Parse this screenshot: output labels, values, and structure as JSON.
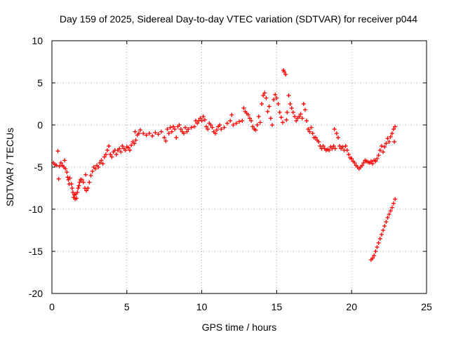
{
  "chart_data": {
    "type": "scatter",
    "title": "Day 159 of 2025, Sidereal Day-to-day VTEC variation (SDTVAR) for receiver p044",
    "xlabel": "GPS time / hours",
    "ylabel": "SDTVAR / TECUs",
    "xlim": [
      0,
      25
    ],
    "ylim": [
      -20,
      10
    ],
    "xticks": [
      0,
      5,
      10,
      15,
      20,
      25
    ],
    "yticks": [
      -20,
      -15,
      -10,
      -5,
      0,
      5,
      10
    ],
    "grid": true,
    "marker": "plus",
    "color": "#ff0000",
    "series": [
      {
        "name": "main",
        "points": [
          [
            0.1,
            -4.5
          ],
          [
            0.2,
            -4.7
          ],
          [
            0.3,
            -4.8
          ],
          [
            0.4,
            -3.1
          ],
          [
            0.45,
            -6.4
          ],
          [
            0.5,
            -4.9
          ],
          [
            0.6,
            -4.5
          ],
          [
            0.7,
            -4.8
          ],
          [
            0.8,
            -5.0
          ],
          [
            0.85,
            -4.2
          ],
          [
            0.9,
            -5.2
          ],
          [
            1.0,
            -5.6
          ],
          [
            1.05,
            -6.2
          ],
          [
            1.1,
            -6.5
          ],
          [
            1.15,
            -7.0
          ],
          [
            1.2,
            -6.3
          ],
          [
            1.3,
            -7.0
          ],
          [
            1.35,
            -7.5
          ],
          [
            1.4,
            -8.0
          ],
          [
            1.45,
            -8.6
          ],
          [
            1.5,
            -8.3
          ],
          [
            1.55,
            -8.8
          ],
          [
            1.6,
            -8.2
          ],
          [
            1.65,
            -8.7
          ],
          [
            1.7,
            -8.0
          ],
          [
            1.75,
            -7.5
          ],
          [
            1.8,
            -7.2
          ],
          [
            1.85,
            -6.8
          ],
          [
            1.9,
            -6.5
          ],
          [
            2.0,
            -6.5
          ],
          [
            2.1,
            -6.8
          ],
          [
            2.2,
            -7.5
          ],
          [
            2.25,
            -5.9
          ],
          [
            2.3,
            -7.8
          ],
          [
            2.4,
            -7.5
          ],
          [
            2.5,
            -6.8
          ],
          [
            2.6,
            -6.0
          ],
          [
            2.7,
            -5.5
          ],
          [
            2.8,
            -5.0
          ],
          [
            2.9,
            -5.2
          ],
          [
            3.0,
            -4.8
          ],
          [
            3.1,
            -5.0
          ],
          [
            3.2,
            -4.5
          ],
          [
            3.3,
            -4.2
          ],
          [
            3.4,
            -4.6
          ],
          [
            3.5,
            -3.8
          ],
          [
            3.6,
            -3.5
          ],
          [
            3.7,
            -3.0
          ],
          [
            3.8,
            -2.5
          ],
          [
            3.9,
            -3.5
          ],
          [
            4.0,
            -3.8
          ],
          [
            4.1,
            -3.2
          ],
          [
            4.2,
            -3.0
          ],
          [
            4.3,
            -3.5
          ],
          [
            4.4,
            -3.0
          ],
          [
            4.5,
            -2.8
          ],
          [
            4.6,
            -3.2
          ],
          [
            4.7,
            -2.5
          ],
          [
            4.8,
            -2.8
          ],
          [
            4.9,
            -3.0
          ],
          [
            5.0,
            -2.6
          ],
          [
            5.1,
            -2.7
          ],
          [
            5.2,
            -3.0
          ],
          [
            5.3,
            -2.4
          ],
          [
            5.4,
            -2.0
          ],
          [
            5.5,
            -2.2
          ],
          [
            5.55,
            -0.8
          ],
          [
            5.6,
            -1.8
          ],
          [
            5.7,
            -1.2
          ],
          [
            5.8,
            -1.0
          ],
          [
            5.9,
            -0.6
          ],
          [
            6.1,
            -1.0
          ],
          [
            6.3,
            -1.2
          ],
          [
            6.5,
            -1.0
          ],
          [
            6.7,
            -1.3
          ],
          [
            6.9,
            -0.9
          ],
          [
            7.1,
            -1.1
          ],
          [
            7.3,
            -0.8
          ],
          [
            7.5,
            -1.5
          ],
          [
            7.6,
            -1.9
          ],
          [
            7.7,
            -0.5
          ],
          [
            7.8,
            -1.0
          ],
          [
            7.9,
            -0.3
          ],
          [
            8.0,
            -0.8
          ],
          [
            8.1,
            -0.2
          ],
          [
            8.2,
            -0.5
          ],
          [
            8.3,
            -1.5
          ],
          [
            8.4,
            -0.2
          ],
          [
            8.5,
            0.0
          ],
          [
            8.6,
            -0.5
          ],
          [
            8.7,
            -0.8
          ],
          [
            8.8,
            -1.0
          ],
          [
            8.9,
            -0.3
          ],
          [
            9.0,
            -0.8
          ],
          [
            9.1,
            -0.5
          ],
          [
            9.3,
            -0.3
          ],
          [
            9.5,
            -0.2
          ],
          [
            9.6,
            0.5
          ],
          [
            9.7,
            0.2
          ],
          [
            9.8,
            0.5
          ],
          [
            9.9,
            0.8
          ],
          [
            10.0,
            0.5
          ],
          [
            10.1,
            1.0
          ],
          [
            10.2,
            0.6
          ],
          [
            10.3,
            -0.2
          ],
          [
            10.4,
            -0.5
          ],
          [
            10.5,
            0.2
          ],
          [
            10.6,
            0.0
          ],
          [
            10.7,
            -0.3
          ],
          [
            10.8,
            -0.8
          ],
          [
            10.9,
            -1.0
          ],
          [
            11.0,
            -0.6
          ],
          [
            11.1,
            -0.2
          ],
          [
            11.2,
            0.0
          ],
          [
            11.3,
            -0.5
          ],
          [
            11.5,
            -0.3
          ],
          [
            11.7,
            0.2
          ],
          [
            11.9,
            0.5
          ],
          [
            12.0,
            1.2
          ],
          [
            12.1,
            0.0
          ],
          [
            12.3,
            0.2
          ],
          [
            12.5,
            0.4
          ],
          [
            12.7,
            0.5
          ],
          [
            12.8,
            2.0
          ],
          [
            12.9,
            1.6
          ],
          [
            13.0,
            1.4
          ],
          [
            13.1,
            1.2
          ],
          [
            13.2,
            0.8
          ],
          [
            13.3,
            0.5
          ],
          [
            13.4,
            -0.2
          ],
          [
            13.5,
            -0.5
          ],
          [
            13.6,
            -0.6
          ],
          [
            13.7,
            0.0
          ],
          [
            13.8,
            1.0
          ],
          [
            13.9,
            0.3
          ],
          [
            14.0,
            2.5
          ],
          [
            14.1,
            3.5
          ],
          [
            14.2,
            3.8
          ],
          [
            14.3,
            3.2
          ],
          [
            14.4,
            1.6
          ],
          [
            14.5,
            2.2
          ],
          [
            14.6,
            0.8
          ],
          [
            14.7,
            0.0
          ],
          [
            14.8,
            3.0
          ],
          [
            14.9,
            3.6
          ],
          [
            15.0,
            3.2
          ],
          [
            15.1,
            2.5
          ],
          [
            15.2,
            1.5
          ],
          [
            15.3,
            0.9
          ],
          [
            15.4,
            0.3
          ],
          [
            15.45,
            6.5
          ],
          [
            15.5,
            6.3
          ],
          [
            15.6,
            6.0
          ],
          [
            15.65,
            0.6
          ],
          [
            15.7,
            1.5
          ],
          [
            15.8,
            3.5
          ],
          [
            15.9,
            2.5
          ],
          [
            16.0,
            2.0
          ],
          [
            16.1,
            1.5
          ],
          [
            16.2,
            1.0
          ],
          [
            16.3,
            0.5
          ],
          [
            16.4,
            0.8
          ],
          [
            16.5,
            1.0
          ],
          [
            16.6,
            1.3
          ],
          [
            16.7,
            0.8
          ],
          [
            16.8,
            2.5
          ],
          [
            16.9,
            1.8
          ],
          [
            17.0,
            0.5
          ],
          [
            17.1,
            -0.5
          ],
          [
            17.2,
            -0.8
          ],
          [
            17.3,
            -0.3
          ],
          [
            17.4,
            -1.0
          ],
          [
            17.5,
            -1.5
          ],
          [
            17.6,
            -1.5
          ],
          [
            17.7,
            -1.8
          ],
          [
            17.8,
            -2.0
          ],
          [
            17.9,
            -2.5
          ],
          [
            18.0,
            -2.8
          ],
          [
            18.1,
            -2.5
          ],
          [
            18.2,
            -2.8
          ],
          [
            18.3,
            -3.0
          ],
          [
            18.4,
            -2.9
          ],
          [
            18.5,
            -3.0
          ],
          [
            18.6,
            -2.6
          ],
          [
            18.7,
            -2.8
          ],
          [
            18.8,
            -2.5
          ],
          [
            18.85,
            -0.5
          ],
          [
            18.9,
            -2.8
          ],
          [
            19.0,
            -1.0
          ],
          [
            19.1,
            -1.5
          ],
          [
            19.2,
            -2.5
          ],
          [
            19.3,
            -2.8
          ],
          [
            19.4,
            -2.6
          ],
          [
            19.5,
            -3.0
          ],
          [
            19.6,
            -2.5
          ],
          [
            19.7,
            -3.0
          ],
          [
            19.8,
            -3.5
          ],
          [
            19.9,
            -3.9
          ],
          [
            20.0,
            -4.0
          ],
          [
            20.1,
            -4.3
          ],
          [
            20.2,
            -4.5
          ],
          [
            20.3,
            -4.8
          ],
          [
            20.4,
            -5.0
          ],
          [
            20.5,
            -5.2
          ],
          [
            20.6,
            -5.0
          ],
          [
            20.7,
            -4.8
          ],
          [
            20.8,
            -4.5
          ],
          [
            20.9,
            -4.2
          ],
          [
            21.0,
            -4.3
          ],
          [
            21.1,
            -4.4
          ],
          [
            21.2,
            -4.5
          ],
          [
            21.3,
            -4.3
          ],
          [
            21.4,
            -4.6
          ],
          [
            21.5,
            -4.2
          ],
          [
            21.6,
            -4.3
          ],
          [
            21.7,
            -4.0
          ],
          [
            21.8,
            -3.6
          ],
          [
            21.9,
            -3.0
          ],
          [
            22.0,
            -2.5
          ],
          [
            22.1,
            -3.2
          ],
          [
            22.2,
            -2.6
          ],
          [
            22.3,
            -2.2
          ],
          [
            22.4,
            -1.6
          ],
          [
            22.5,
            -2.0
          ],
          [
            22.6,
            -1.4
          ],
          [
            22.7,
            -1.0
          ],
          [
            22.8,
            -0.5
          ],
          [
            22.85,
            -2.0
          ],
          [
            22.9,
            -0.2
          ]
        ]
      },
      {
        "name": "descending-trace",
        "points": [
          [
            21.3,
            -16.0
          ],
          [
            21.4,
            -15.8
          ],
          [
            21.5,
            -15.5
          ],
          [
            21.6,
            -15.0
          ],
          [
            21.7,
            -14.5
          ],
          [
            21.8,
            -14.0
          ],
          [
            21.9,
            -13.5
          ],
          [
            22.0,
            -13.0
          ],
          [
            22.1,
            -12.5
          ],
          [
            22.2,
            -12.0
          ],
          [
            22.3,
            -11.5
          ],
          [
            22.4,
            -11.0
          ],
          [
            22.5,
            -10.6
          ],
          [
            22.6,
            -10.2
          ],
          [
            22.7,
            -9.8
          ],
          [
            22.8,
            -9.3
          ],
          [
            22.9,
            -8.8
          ]
        ]
      }
    ]
  }
}
